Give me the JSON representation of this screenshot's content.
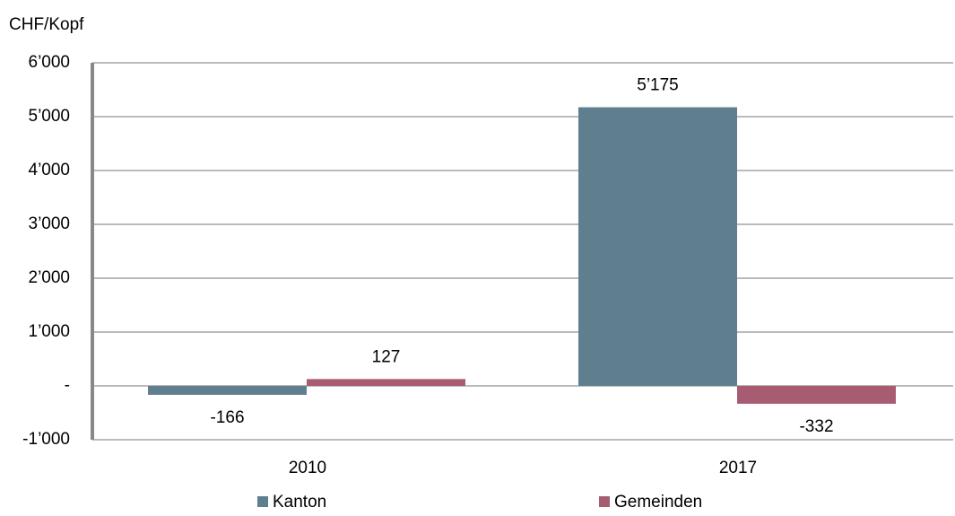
{
  "chart_data": {
    "type": "bar",
    "y_label": "CHF/Kopf",
    "categories": [
      "2010",
      "2017"
    ],
    "series": [
      {
        "name": "Kanton",
        "color": "#5f7f8f",
        "values": [
          -166,
          5175
        ],
        "value_labels": [
          "-166",
          "5’175"
        ]
      },
      {
        "name": "Gemeinden",
        "color": "#a85c72",
        "values": [
          127,
          -332
        ],
        "value_labels": [
          "127",
          "-332"
        ]
      }
    ],
    "ylim": [
      -1000,
      6000
    ],
    "yticks": [
      {
        "value": -1000,
        "label": "-1’000"
      },
      {
        "value": 0,
        "label": "-"
      },
      {
        "value": 1000,
        "label": "1’000"
      },
      {
        "value": 2000,
        "label": "2’000"
      },
      {
        "value": 3000,
        "label": "3’000"
      },
      {
        "value": 4000,
        "label": "4’000"
      },
      {
        "value": 5000,
        "label": "5’000"
      },
      {
        "value": 6000,
        "label": "6’000"
      }
    ],
    "grid": true
  }
}
